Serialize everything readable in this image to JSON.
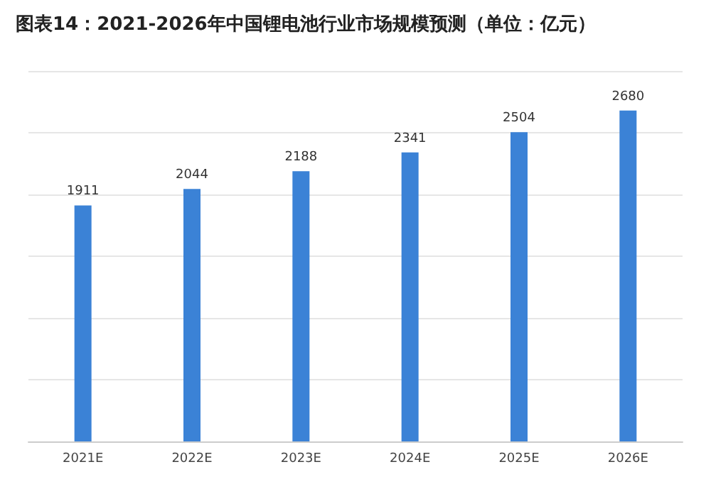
{
  "chart_data": {
    "type": "bar",
    "title": "图表14：2021-2026年中国锂电池行业市场规模预测（单位：亿元）",
    "categories": [
      "2021E",
      "2022E",
      "2023E",
      "2024E",
      "2025E",
      "2026E"
    ],
    "values": [
      1911,
      2044,
      2188,
      2341,
      2504,
      2680
    ],
    "color": "#3b82d6",
    "data_labels": true,
    "grid": "y",
    "tick_labels": "x"
  }
}
